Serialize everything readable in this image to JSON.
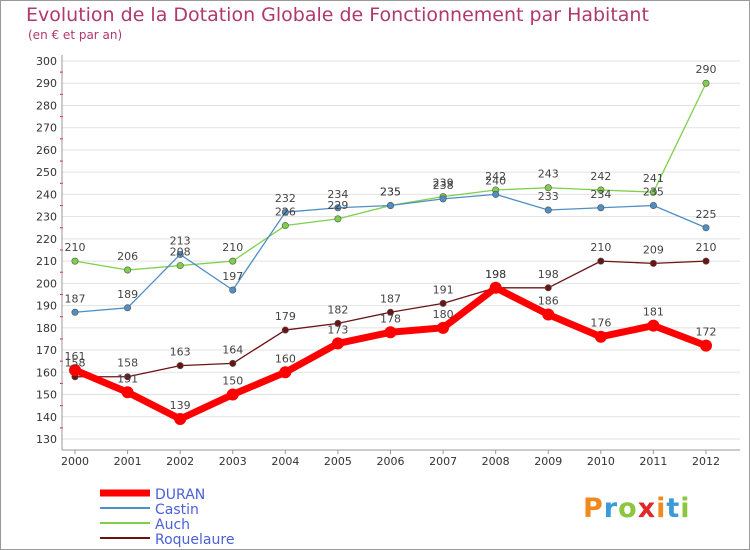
{
  "chart_data": {
    "type": "line",
    "title": "Evolution de la Dotation Globale de Fonctionnement par Habitant",
    "subtitle": "(en € et par an)",
    "xlabel": "",
    "ylabel": "",
    "ylim": [
      130,
      300
    ],
    "yticks": [
      130,
      140,
      150,
      160,
      170,
      180,
      190,
      200,
      210,
      220,
      230,
      240,
      250,
      260,
      270,
      280,
      290,
      300
    ],
    "x": [
      "2000",
      "2001",
      "2002",
      "2003",
      "2004",
      "2005",
      "2006",
      "2007",
      "2008",
      "2009",
      "2010",
      "2011",
      "2012"
    ],
    "grid": "horizontal",
    "legend_position": "bottom-left",
    "series": [
      {
        "name": "DURAN",
        "color": "#ff0000",
        "values": [
          161,
          151,
          139,
          150,
          160,
          173,
          178,
          180,
          198,
          186,
          176,
          181,
          172
        ]
      },
      {
        "name": "Castin",
        "color": "#4f8fc6",
        "values": [
          187,
          189,
          213,
          197,
          232,
          234,
          235,
          238,
          240,
          233,
          234,
          235,
          225
        ]
      },
      {
        "name": "Auch",
        "color": "#7ed04a",
        "values": [
          210,
          206,
          208,
          210,
          226,
          229,
          235,
          239,
          242,
          243,
          242,
          241,
          290
        ]
      },
      {
        "name": "Roquelaure",
        "color": "#6b1414",
        "values": [
          158,
          158,
          163,
          164,
          179,
          182,
          187,
          191,
          198,
          198,
          210,
          209,
          210
        ]
      }
    ]
  },
  "logo": {
    "text": "Proxiti"
  }
}
